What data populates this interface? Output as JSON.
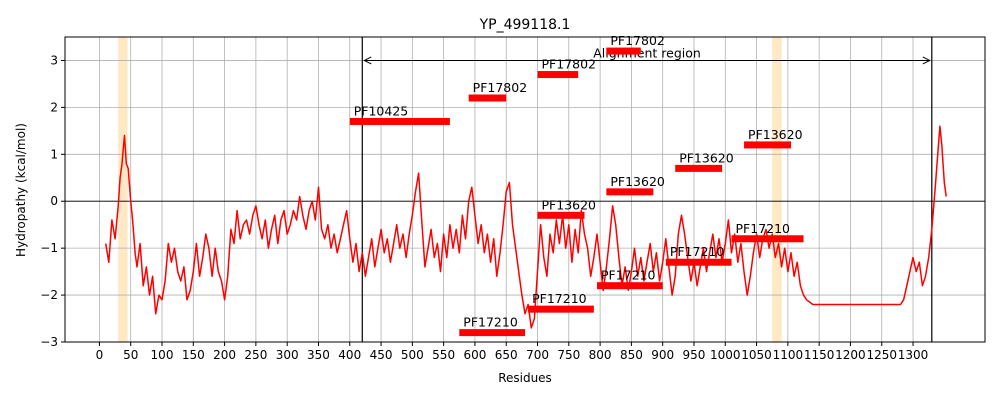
{
  "chart_data": {
    "type": "line",
    "title": "YP_499118.1",
    "xlabel": "Residues",
    "ylabel": "Hydropathy (kcal/mol)",
    "xlim": [
      -55,
      1415
    ],
    "ylim": [
      -3,
      3.5
    ],
    "x_ticks": [
      0,
      50,
      100,
      150,
      200,
      250,
      300,
      350,
      400,
      450,
      500,
      550,
      600,
      650,
      700,
      750,
      800,
      850,
      900,
      950,
      1000,
      1050,
      1100,
      1150,
      1200,
      1250,
      1300
    ],
    "y_ticks": [
      -3,
      -2,
      -1,
      0,
      1,
      2,
      3
    ],
    "grid": true,
    "colors": {
      "line": "#ff0000",
      "domain": "#ff0000",
      "highlight": "#ffe8c4",
      "axes": "#000000"
    },
    "series": [
      {
        "points": [
          [
            10,
            -0.9
          ],
          [
            15,
            -1.3
          ],
          [
            20,
            -0.4
          ],
          [
            25,
            -0.8
          ],
          [
            30,
            -0.1
          ],
          [
            33,
            0.5
          ],
          [
            36,
            0.8
          ],
          [
            38,
            1.1
          ],
          [
            40,
            1.4
          ],
          [
            43,
            0.8
          ],
          [
            46,
            0.7
          ],
          [
            50,
            0.0
          ],
          [
            53,
            -0.4
          ],
          [
            57,
            -1.1
          ],
          [
            60,
            -1.4
          ],
          [
            65,
            -0.9
          ],
          [
            70,
            -1.8
          ],
          [
            75,
            -1.4
          ],
          [
            80,
            -2.0
          ],
          [
            85,
            -1.6
          ],
          [
            90,
            -2.4
          ],
          [
            95,
            -2.0
          ],
          [
            100,
            -2.1
          ],
          [
            105,
            -1.7
          ],
          [
            110,
            -0.9
          ],
          [
            115,
            -1.3
          ],
          [
            120,
            -1.0
          ],
          [
            125,
            -1.5
          ],
          [
            130,
            -1.7
          ],
          [
            135,
            -1.4
          ],
          [
            140,
            -2.1
          ],
          [
            145,
            -1.9
          ],
          [
            150,
            -1.5
          ],
          [
            155,
            -0.9
          ],
          [
            160,
            -1.6
          ],
          [
            165,
            -1.2
          ],
          [
            170,
            -0.7
          ],
          [
            175,
            -1.0
          ],
          [
            180,
            -1.6
          ],
          [
            185,
            -1.0
          ],
          [
            190,
            -1.5
          ],
          [
            195,
            -1.7
          ],
          [
            200,
            -2.1
          ],
          [
            205,
            -1.6
          ],
          [
            210,
            -0.6
          ],
          [
            215,
            -0.9
          ],
          [
            220,
            -0.2
          ],
          [
            225,
            -0.8
          ],
          [
            230,
            -0.5
          ],
          [
            235,
            -0.4
          ],
          [
            240,
            -0.7
          ],
          [
            245,
            -0.3
          ],
          [
            250,
            -0.1
          ],
          [
            255,
            -0.5
          ],
          [
            260,
            -0.8
          ],
          [
            265,
            -0.4
          ],
          [
            270,
            -1.0
          ],
          [
            275,
            -0.6
          ],
          [
            280,
            -0.3
          ],
          [
            285,
            -0.9
          ],
          [
            290,
            -0.4
          ],
          [
            295,
            -0.2
          ],
          [
            300,
            -0.7
          ],
          [
            305,
            -0.5
          ],
          [
            310,
            -0.2
          ],
          [
            315,
            -0.4
          ],
          [
            320,
            0.1
          ],
          [
            325,
            -0.3
          ],
          [
            330,
            -0.6
          ],
          [
            335,
            -0.2
          ],
          [
            340,
            0.0
          ],
          [
            345,
            -0.4
          ],
          [
            350,
            0.3
          ],
          [
            355,
            -0.6
          ],
          [
            360,
            -0.8
          ],
          [
            365,
            -0.5
          ],
          [
            370,
            -1.0
          ],
          [
            375,
            -0.7
          ],
          [
            380,
            -1.1
          ],
          [
            385,
            -0.8
          ],
          [
            390,
            -0.5
          ],
          [
            395,
            -0.2
          ],
          [
            400,
            -0.8
          ],
          [
            405,
            -1.3
          ],
          [
            410,
            -0.9
          ],
          [
            415,
            -1.5
          ],
          [
            420,
            -1.1
          ],
          [
            425,
            -1.6
          ],
          [
            430,
            -1.2
          ],
          [
            435,
            -0.8
          ],
          [
            440,
            -1.4
          ],
          [
            445,
            -1.0
          ],
          [
            450,
            -0.6
          ],
          [
            455,
            -1.1
          ],
          [
            460,
            -0.8
          ],
          [
            465,
            -1.3
          ],
          [
            470,
            -0.9
          ],
          [
            475,
            -0.5
          ],
          [
            480,
            -1.0
          ],
          [
            485,
            -0.7
          ],
          [
            490,
            -1.2
          ],
          [
            495,
            -0.7
          ],
          [
            500,
            -0.3
          ],
          [
            505,
            0.2
          ],
          [
            510,
            0.6
          ],
          [
            515,
            -0.4
          ],
          [
            520,
            -1.4
          ],
          [
            525,
            -1.0
          ],
          [
            530,
            -0.6
          ],
          [
            535,
            -1.2
          ],
          [
            540,
            -0.9
          ],
          [
            545,
            -1.5
          ],
          [
            550,
            -0.7
          ],
          [
            555,
            -1.2
          ],
          [
            560,
            -0.5
          ],
          [
            565,
            -1.0
          ],
          [
            570,
            -0.6
          ],
          [
            575,
            -1.1
          ],
          [
            580,
            -0.3
          ],
          [
            585,
            -0.8
          ],
          [
            590,
            0.0
          ],
          [
            595,
            0.3
          ],
          [
            600,
            -0.3
          ],
          [
            605,
            -0.9
          ],
          [
            610,
            -0.5
          ],
          [
            615,
            -1.1
          ],
          [
            620,
            -0.7
          ],
          [
            625,
            -1.3
          ],
          [
            630,
            -0.8
          ],
          [
            635,
            -1.6
          ],
          [
            640,
            -1.1
          ],
          [
            645,
            -0.5
          ],
          [
            650,
            0.2
          ],
          [
            655,
            0.4
          ],
          [
            660,
            -0.5
          ],
          [
            665,
            -1.0
          ],
          [
            670,
            -1.5
          ],
          [
            675,
            -2.0
          ],
          [
            680,
            -2.4
          ],
          [
            685,
            -2.2
          ],
          [
            690,
            -2.7
          ],
          [
            695,
            -2.5
          ],
          [
            700,
            -1.5
          ],
          [
            705,
            -0.5
          ],
          [
            710,
            -1.2
          ],
          [
            715,
            -1.6
          ],
          [
            720,
            -0.7
          ],
          [
            725,
            -1.1
          ],
          [
            730,
            -0.4
          ],
          [
            735,
            -0.9
          ],
          [
            740,
            -0.3
          ],
          [
            745,
            -1.0
          ],
          [
            750,
            -0.5
          ],
          [
            755,
            -1.3
          ],
          [
            760,
            -0.6
          ],
          [
            765,
            -1.1
          ],
          [
            770,
            -0.2
          ],
          [
            775,
            -0.7
          ],
          [
            780,
            -1.0
          ],
          [
            785,
            -1.6
          ],
          [
            790,
            -1.2
          ],
          [
            795,
            -0.7
          ],
          [
            800,
            -1.3
          ],
          [
            805,
            -1.9
          ],
          [
            810,
            -1.4
          ],
          [
            815,
            -0.8
          ],
          [
            820,
            -0.1
          ],
          [
            825,
            -0.5
          ],
          [
            830,
            -1.2
          ],
          [
            835,
            -1.8
          ],
          [
            840,
            -1.4
          ],
          [
            845,
            -1.9
          ],
          [
            850,
            -1.5
          ],
          [
            855,
            -1.0
          ],
          [
            860,
            -1.6
          ],
          [
            865,
            -1.2
          ],
          [
            870,
            -1.7
          ],
          [
            875,
            -1.3
          ],
          [
            880,
            -0.9
          ],
          [
            885,
            -1.5
          ],
          [
            890,
            -1.1
          ],
          [
            895,
            -1.7
          ],
          [
            900,
            -1.3
          ],
          [
            905,
            -0.8
          ],
          [
            910,
            -1.4
          ],
          [
            915,
            -2.0
          ],
          [
            920,
            -1.6
          ],
          [
            925,
            -0.7
          ],
          [
            930,
            -0.3
          ],
          [
            935,
            -0.7
          ],
          [
            940,
            -1.2
          ],
          [
            945,
            -1.7
          ],
          [
            950,
            -1.3
          ],
          [
            955,
            -1.8
          ],
          [
            960,
            -1.4
          ],
          [
            965,
            -1.0
          ],
          [
            970,
            -1.5
          ],
          [
            975,
            -1.1
          ],
          [
            980,
            -0.7
          ],
          [
            985,
            -1.2
          ],
          [
            990,
            -0.8
          ],
          [
            995,
            -1.3
          ],
          [
            1000,
            -0.9
          ],
          [
            1005,
            -0.4
          ],
          [
            1010,
            -1.1
          ],
          [
            1015,
            -0.7
          ],
          [
            1020,
            -1.3
          ],
          [
            1025,
            -0.9
          ],
          [
            1030,
            -1.5
          ],
          [
            1035,
            -2.0
          ],
          [
            1040,
            -1.6
          ],
          [
            1045,
            -1.1
          ],
          [
            1050,
            -0.7
          ],
          [
            1055,
            -1.2
          ],
          [
            1060,
            -0.8
          ],
          [
            1065,
            -0.6
          ],
          [
            1070,
            -1.0
          ],
          [
            1075,
            -0.7
          ],
          [
            1080,
            -1.2
          ],
          [
            1085,
            -0.9
          ],
          [
            1090,
            -1.4
          ],
          [
            1095,
            -1.0
          ],
          [
            1100,
            -1.5
          ],
          [
            1105,
            -1.1
          ],
          [
            1110,
            -1.6
          ],
          [
            1115,
            -1.3
          ],
          [
            1120,
            -1.8
          ],
          [
            1125,
            -2.0
          ],
          [
            1130,
            -2.1
          ],
          [
            1140,
            -2.2
          ],
          [
            1160,
            -2.2
          ],
          [
            1180,
            -2.2
          ],
          [
            1200,
            -2.2
          ],
          [
            1220,
            -2.2
          ],
          [
            1240,
            -2.2
          ],
          [
            1260,
            -2.2
          ],
          [
            1280,
            -2.2
          ],
          [
            1285,
            -2.1
          ],
          [
            1290,
            -1.8
          ],
          [
            1295,
            -1.5
          ],
          [
            1300,
            -1.2
          ],
          [
            1305,
            -1.5
          ],
          [
            1310,
            -1.3
          ],
          [
            1315,
            -1.8
          ],
          [
            1320,
            -1.6
          ],
          [
            1325,
            -1.2
          ],
          [
            1330,
            -0.6
          ],
          [
            1335,
            0.2
          ],
          [
            1340,
            1.1
          ],
          [
            1343,
            1.6
          ],
          [
            1346,
            1.2
          ],
          [
            1350,
            0.4
          ],
          [
            1353,
            0.1
          ]
        ]
      }
    ],
    "highlight_regions": [
      [
        30,
        45
      ],
      [
        1075,
        1090
      ]
    ],
    "vertical_lines": [
      420,
      1330
    ],
    "alignment_region": {
      "label": "Alignment region",
      "x_start": 420,
      "x_end": 1330,
      "y": 3.0
    },
    "domains": [
      {
        "label": "PF10425",
        "x_start": 400,
        "x_end": 560,
        "y": 1.7
      },
      {
        "label": "PF17802",
        "x_start": 590,
        "x_end": 650,
        "y": 2.2
      },
      {
        "label": "PF17802",
        "x_start": 700,
        "x_end": 765,
        "y": 2.7
      },
      {
        "label": "PF17802",
        "x_start": 810,
        "x_end": 865,
        "y": 3.2
      },
      {
        "label": "PF13620",
        "x_start": 700,
        "x_end": 775,
        "y": -0.3
      },
      {
        "label": "PF13620",
        "x_start": 810,
        "x_end": 885,
        "y": 0.2
      },
      {
        "label": "PF13620",
        "x_start": 920,
        "x_end": 995,
        "y": 0.7
      },
      {
        "label": "PF13620",
        "x_start": 1030,
        "x_end": 1105,
        "y": 1.2
      },
      {
        "label": "PF17210",
        "x_start": 575,
        "x_end": 680,
        "y": -2.8
      },
      {
        "label": "PF17210",
        "x_start": 685,
        "x_end": 790,
        "y": -2.3
      },
      {
        "label": "PF17210",
        "x_start": 795,
        "x_end": 900,
        "y": -1.8
      },
      {
        "label": "PF17210",
        "x_start": 905,
        "x_end": 1010,
        "y": -1.3
      },
      {
        "label": "PF17210",
        "x_start": 1010,
        "x_end": 1125,
        "y": -0.8
      }
    ]
  }
}
